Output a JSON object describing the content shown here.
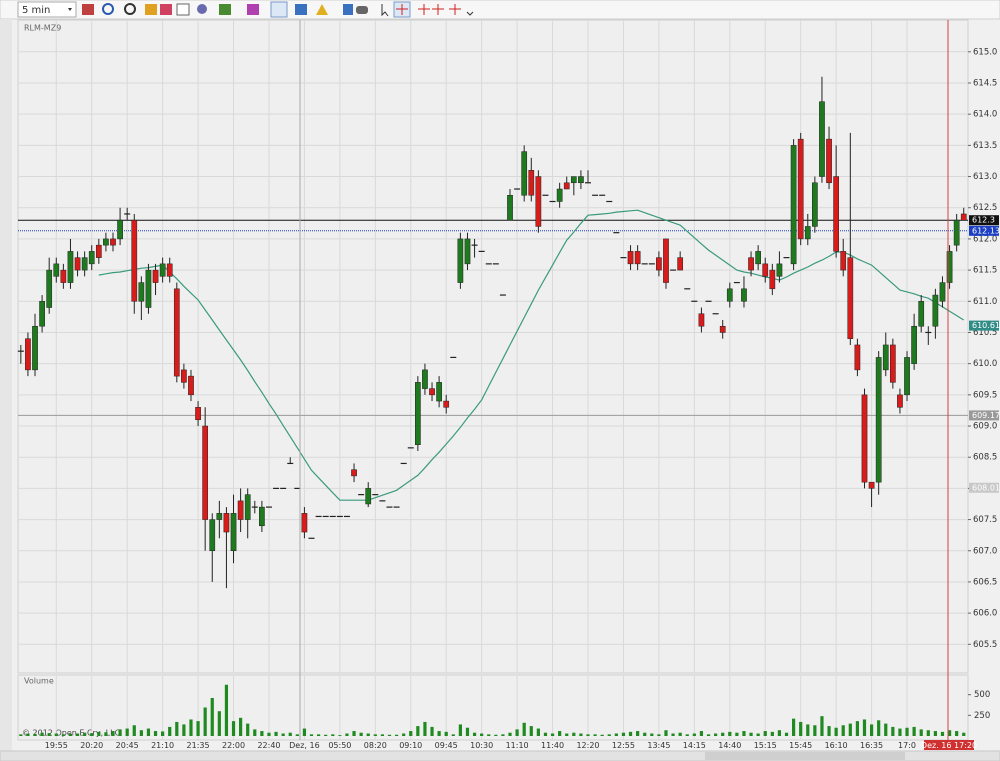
{
  "ui": {
    "interval": "5 min",
    "copyright": "© 2012 Open E Cry, LLC",
    "cursor_time": "Dez. 16 17:20"
  },
  "chart_data": {
    "type": "candlestick",
    "title": "RLM-MZ9",
    "categories": [
      null,
      null,
      null,
      null,
      null,
      "19:55",
      null,
      null,
      null,
      null,
      "20:20",
      null,
      null,
      null,
      null,
      "20:45",
      null,
      null,
      null,
      null,
      "21:10",
      null,
      null,
      null,
      null,
      "21:35",
      null,
      null,
      null,
      null,
      "22:00",
      null,
      null,
      null,
      null,
      "22:40",
      null,
      null,
      null,
      null,
      "Dez, 16",
      null,
      null,
      null,
      null,
      "05:50",
      null,
      null,
      null,
      null,
      "08:20",
      null,
      null,
      null,
      null,
      "09:10",
      null,
      null,
      null,
      null,
      "09:45",
      null,
      null,
      null,
      null,
      "10:30",
      null,
      null,
      null,
      null,
      "11:10",
      null,
      null,
      null,
      null,
      "11:40",
      null,
      null,
      null,
      null,
      "12:20",
      null,
      null,
      null,
      null,
      "12:55",
      null,
      null,
      null,
      null,
      "13:45",
      null,
      null,
      null,
      null,
      "14:15",
      null,
      null,
      null,
      null,
      "14:40",
      null,
      null,
      null,
      null,
      "15:15",
      null,
      null,
      null,
      null,
      "15:45",
      null,
      null,
      null,
      null,
      "16:10",
      null,
      null,
      null,
      null,
      "16:35",
      null,
      null,
      null,
      null,
      "17:0",
      null,
      null,
      null,
      null,
      null,
      null,
      null,
      null
    ],
    "open": [
      610.2,
      610.4,
      609.9,
      610.6,
      610.9,
      611.4,
      611.5,
      611.3,
      611.7,
      611.5,
      611.6,
      611.9,
      611.9,
      612.0,
      612.0,
      612.4,
      612.3,
      611.0,
      610.9,
      611.5,
      611.4,
      611.6,
      611.2,
      609.9,
      609.8,
      609.3,
      609.0,
      607.0,
      607.5,
      607.6,
      607.0,
      607.8,
      607.5,
      607.7,
      607.4,
      607.7,
      608.0,
      608.0,
      608.4,
      608.0,
      607.6,
      607.2,
      607.55,
      607.55,
      607.55,
      607.55,
      607.55,
      608.3,
      607.9,
      607.75,
      607.9,
      607.8,
      607.7,
      607.7,
      608.4,
      608.65,
      608.7,
      609.6,
      609.6,
      609.4,
      609.4,
      610.1,
      611.3,
      611.6,
      611.9,
      611.8,
      611.6,
      611.6,
      611.1,
      612.3,
      612.8,
      612.7,
      613.1,
      613.0,
      612.7,
      612.6,
      612.6,
      612.9,
      612.9,
      612.9,
      612.9,
      612.7,
      612.7,
      612.6,
      612.1,
      611.7,
      611.8,
      611.8,
      611.6,
      611.6,
      611.7,
      612.0,
      611.5,
      611.7,
      611.2,
      611.0,
      610.8,
      611.0,
      610.8,
      610.6,
      611.0,
      611.3,
      611.0,
      611.7,
      611.6,
      611.6,
      611.5,
      611.4,
      611.7,
      611.6,
      613.6,
      612.0,
      612.2,
      613.0,
      613.6,
      613.0,
      611.8,
      611.7,
      610.3,
      609.5,
      608.1,
      608.1,
      609.9,
      610.3,
      609.5,
      609.5,
      610.0,
      610.6,
      610.5,
      610.6,
      611.0,
      611.3,
      611.9,
      612.4
    ],
    "high": [
      610.3,
      610.5,
      610.8,
      611.1,
      611.7,
      611.7,
      611.6,
      612.0,
      611.8,
      611.8,
      611.9,
      612.0,
      612.1,
      612.1,
      612.5,
      612.5,
      612.4,
      611.4,
      611.6,
      611.6,
      611.7,
      611.7,
      611.3,
      610.0,
      609.9,
      609.4,
      609.3,
      607.6,
      607.8,
      607.7,
      607.9,
      608.0,
      608.0,
      607.8,
      607.8,
      607.7,
      608.0,
      608.0,
      608.5,
      608.0,
      607.7,
      607.2,
      607.55,
      607.55,
      607.55,
      607.55,
      607.55,
      608.4,
      607.9,
      608.1,
      607.9,
      607.8,
      607.7,
      607.7,
      608.4,
      608.65,
      609.8,
      610.0,
      609.7,
      609.8,
      609.5,
      610.1,
      612.1,
      612.1,
      612.0,
      611.8,
      611.6,
      611.6,
      611.1,
      612.8,
      612.8,
      613.5,
      613.3,
      613.1,
      612.7,
      612.6,
      612.9,
      613.0,
      613.0,
      613.1,
      613.1,
      612.7,
      612.7,
      612.6,
      612.1,
      611.7,
      611.9,
      611.9,
      611.6,
      611.6,
      611.8,
      612.0,
      611.5,
      611.8,
      611.2,
      611.0,
      610.9,
      611.0,
      610.8,
      610.7,
      611.3,
      611.3,
      611.4,
      611.8,
      611.9,
      611.7,
      611.6,
      611.8,
      611.7,
      613.6,
      613.7,
      612.4,
      613.0,
      614.6,
      613.8,
      613.5,
      612.0,
      613.7,
      610.4,
      609.6,
      608.1,
      610.2,
      610.5,
      610.4,
      609.6,
      610.2,
      610.8,
      611.1,
      610.6,
      611.2,
      611.4,
      611.9,
      612.4,
      612.5
    ],
    "low": [
      610.0,
      609.8,
      609.8,
      610.5,
      610.8,
      611.3,
      611.2,
      611.2,
      611.4,
      611.4,
      611.5,
      611.6,
      611.8,
      611.8,
      611.9,
      612.3,
      610.8,
      610.7,
      610.8,
      611.1,
      611.3,
      611.3,
      609.7,
      609.6,
      609.4,
      609.0,
      607.0,
      606.5,
      607.2,
      606.4,
      606.8,
      607.3,
      607.2,
      607.6,
      607.3,
      607.7,
      608.0,
      608.0,
      608.4,
      608.0,
      607.2,
      607.2,
      607.55,
      607.55,
      607.55,
      607.55,
      607.55,
      608.1,
      607.9,
      607.7,
      607.9,
      607.8,
      607.7,
      607.7,
      608.4,
      608.65,
      608.6,
      609.5,
      609.4,
      609.3,
      609.2,
      610.1,
      611.2,
      611.5,
      611.7,
      611.8,
      611.6,
      611.6,
      611.1,
      612.3,
      612.8,
      612.6,
      612.6,
      612.1,
      612.7,
      612.6,
      612.5,
      612.8,
      612.7,
      612.8,
      612.9,
      612.7,
      612.7,
      612.6,
      612.1,
      611.7,
      611.5,
      611.5,
      611.6,
      611.6,
      611.4,
      611.2,
      611.5,
      611.5,
      611.2,
      611.0,
      610.5,
      611.0,
      610.8,
      610.4,
      610.9,
      611.3,
      610.9,
      611.4,
      611.5,
      611.3,
      611.1,
      611.3,
      611.7,
      611.5,
      611.9,
      611.9,
      612.1,
      612.9,
      612.8,
      611.7,
      611.4,
      610.3,
      609.8,
      608.0,
      607.7,
      607.9,
      609.8,
      609.6,
      609.2,
      609.4,
      609.9,
      610.5,
      610.3,
      610.4,
      610.9,
      611.2,
      611.8,
      612.3
    ],
    "close": [
      610.2,
      609.9,
      610.6,
      611.0,
      611.5,
      611.6,
      611.3,
      611.8,
      611.5,
      611.7,
      611.8,
      611.7,
      612.0,
      611.9,
      612.3,
      612.4,
      611.0,
      611.3,
      611.5,
      611.3,
      611.6,
      611.4,
      609.8,
      609.7,
      609.5,
      609.1,
      607.5,
      607.5,
      607.6,
      607.3,
      607.6,
      607.5,
      607.9,
      607.7,
      607.7,
      607.7,
      608.0,
      608.0,
      608.4,
      608.0,
      607.3,
      607.2,
      607.55,
      607.55,
      607.55,
      607.55,
      607.55,
      608.2,
      607.9,
      608.0,
      607.9,
      607.8,
      607.7,
      607.7,
      608.4,
      608.65,
      609.7,
      609.9,
      609.5,
      609.7,
      609.3,
      610.1,
      612.0,
      612.0,
      611.9,
      611.8,
      611.6,
      611.6,
      611.1,
      612.7,
      612.8,
      613.4,
      612.7,
      612.2,
      612.7,
      612.6,
      612.8,
      612.8,
      613.0,
      613.0,
      612.9,
      612.7,
      612.7,
      612.6,
      612.1,
      611.7,
      611.6,
      611.6,
      611.6,
      611.6,
      611.5,
      611.3,
      611.5,
      611.5,
      611.2,
      611.0,
      610.6,
      611.0,
      610.8,
      610.5,
      611.2,
      611.3,
      611.2,
      611.5,
      611.8,
      611.4,
      611.2,
      611.6,
      611.7,
      613.5,
      612.0,
      612.2,
      612.9,
      614.2,
      612.9,
      611.8,
      611.5,
      610.4,
      609.9,
      608.1,
      608.0,
      610.1,
      610.3,
      609.7,
      609.3,
      610.1,
      610.6,
      611.0,
      610.5,
      611.1,
      611.3,
      611.8,
      612.3,
      612.3
    ],
    "up_color": "#1f7a1f",
    "down_color": "#d81c1c",
    "dash_color": "#222222",
    "ylim": [
      605.04,
      615.51
    ],
    "yticks": [
      {
        "value": 605.5,
        "label": "605.5"
      },
      {
        "value": 606,
        "label": "606.0"
      },
      606.5,
      {
        "value": 607,
        "label": "607.0"
      },
      607.5,
      {
        "value": 608,
        "label": "608.0"
      },
      608.5,
      {
        "value": 609,
        "label": "609.0"
      },
      609.5,
      {
        "value": 610,
        "label": "610.0"
      },
      610.5,
      {
        "value": 611,
        "label": "611.0"
      },
      611.5,
      {
        "value": 612,
        "label": "612.0"
      },
      612.5,
      {
        "value": 613,
        "label": "613.0"
      },
      613.5,
      {
        "value": 614,
        "label": "614.0"
      },
      614.5,
      {
        "value": 615,
        "label": "615.0"
      }
    ],
    "grid": true,
    "overlay": {
      "color": "#3a9a7e",
      "values": [
        null,
        null,
        null,
        null,
        null,
        null,
        null,
        null,
        null,
        null,
        null,
        611.42,
        611.44,
        611.46,
        611.47,
        611.49,
        611.51,
        611.53,
        611.54,
        611.56,
        611.58,
        611.47,
        611.36,
        611.24,
        611.13,
        611.02,
        610.86,
        610.7,
        610.54,
        610.38,
        610.22,
        610.06,
        609.89,
        609.71,
        609.54,
        609.36,
        609.19,
        609.01,
        608.83,
        608.65,
        608.47,
        608.29,
        608.17,
        608.05,
        607.93,
        607.81,
        607.81,
        607.81,
        607.81,
        607.81,
        607.85,
        607.89,
        607.93,
        607.97,
        608.05,
        608.13,
        608.21,
        608.33,
        608.46,
        608.58,
        608.71,
        608.84,
        608.98,
        609.13,
        609.27,
        609.42,
        609.64,
        609.86,
        610.08,
        610.3,
        610.52,
        610.74,
        610.96,
        611.18,
        611.38,
        611.58,
        611.78,
        611.98,
        612.11,
        612.25,
        612.38,
        612.39,
        612.4,
        612.41,
        612.43,
        612.44,
        612.45,
        612.46,
        612.42,
        612.38,
        612.34,
        612.3,
        612.26,
        612.22,
        612.12,
        612.02,
        611.92,
        611.82,
        611.74,
        611.66,
        611.58,
        611.5,
        611.47,
        611.45,
        611.42,
        611.39,
        611.37,
        611.34,
        611.39,
        611.45,
        611.5,
        611.55,
        611.61,
        611.66,
        611.72,
        611.79,
        611.79,
        611.74,
        611.68,
        611.63,
        611.58,
        611.48,
        611.38,
        611.28,
        611.18,
        611.15,
        611.12,
        611.08,
        611.05,
        610.98,
        610.91,
        610.84,
        610.77,
        610.7
      ]
    },
    "markers": [
      {
        "value": 612.3,
        "color": "#111111",
        "line": "solid"
      },
      {
        "value": 612.13,
        "color": "#1c3fc4",
        "line": "dotted"
      },
      {
        "value": 610.61,
        "color": "#2f8c86"
      },
      {
        "value": 609.17,
        "color": "#9a9a9a",
        "line": "solid"
      },
      {
        "value": 608.01,
        "color": "#c8c8c8"
      }
    ],
    "volume": {
      "title": "Volume",
      "color": "#1f8a1f",
      "ylim": [
        0,
        714
      ],
      "yticks": [
        250,
        500
      ],
      "values": [
        20,
        30,
        25,
        40,
        35,
        30,
        20,
        25,
        30,
        40,
        35,
        50,
        45,
        60,
        80,
        90,
        130,
        70,
        90,
        60,
        55,
        110,
        170,
        140,
        200,
        180,
        345,
        460,
        300,
        620,
        180,
        220,
        150,
        80,
        60,
        40,
        50,
        30,
        40,
        20,
        90,
        20,
        20,
        15,
        20,
        10,
        30,
        60,
        40,
        30,
        20,
        20,
        15,
        15,
        30,
        60,
        120,
        170,
        110,
        60,
        50,
        20,
        140,
        100,
        40,
        30,
        20,
        15,
        20,
        40,
        80,
        160,
        120,
        90,
        40,
        30,
        60,
        30,
        40,
        30,
        20,
        20,
        15,
        20,
        30,
        40,
        50,
        60,
        40,
        30,
        20,
        70,
        30,
        40,
        20,
        30,
        60,
        20,
        30,
        40,
        50,
        40,
        60,
        40,
        30,
        60,
        50,
        70,
        40,
        210,
        170,
        140,
        130,
        240,
        120,
        100,
        130,
        150,
        180,
        200,
        140,
        190,
        150,
        110,
        90,
        100,
        110,
        80,
        70,
        60,
        50,
        70,
        60,
        40
      ]
    }
  }
}
